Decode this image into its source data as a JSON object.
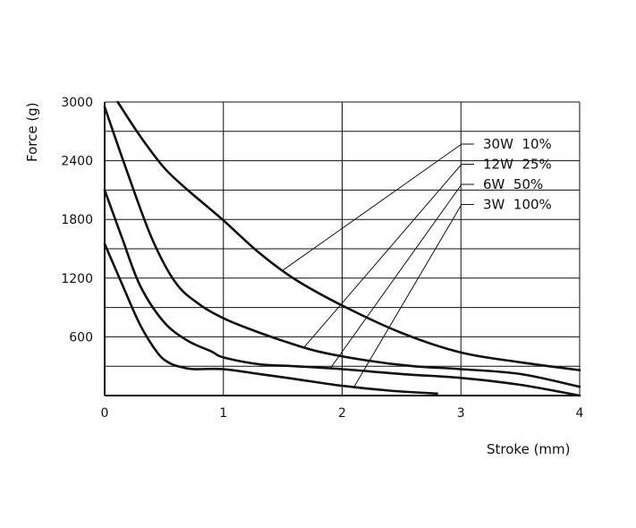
{
  "chart_data": {
    "type": "line",
    "title": "",
    "xlabel": "Stroke (mm)",
    "ylabel": "Force (g)",
    "xlim": [
      0,
      4
    ],
    "ylim": [
      0,
      3000
    ],
    "xticks": [
      0,
      1,
      2,
      3,
      4
    ],
    "yticks": [
      600,
      1200,
      1800,
      2400,
      3000
    ],
    "xgrid": [
      0,
      1,
      2,
      3,
      4
    ],
    "ygrid": [
      300,
      600,
      900,
      1200,
      1500,
      1800,
      2100,
      2400,
      2700,
      3000
    ],
    "grid": true,
    "legend_position": "right, with leader lines to curves",
    "colors": {
      "line": "#111111",
      "grid": "#111111",
      "background": "#ffffff"
    },
    "series": [
      {
        "name": "30W  10%",
        "x": [
          0.11,
          0.3,
          0.5,
          0.7,
          1.0,
          1.3,
          1.6,
          2.0,
          2.5,
          3.0,
          3.5,
          4.0
        ],
        "y": [
          3000,
          2650,
          2330,
          2100,
          1790,
          1460,
          1190,
          920,
          640,
          440,
          340,
          260
        ],
        "label_anchor_x": 1.5
      },
      {
        "name": "12W  25%",
        "x": [
          0.0,
          0.2,
          0.4,
          0.6,
          0.8,
          1.0,
          1.2,
          1.5,
          1.8,
          2.2,
          2.6,
          3.0,
          3.5,
          4.0
        ],
        "y": [
          2950,
          2250,
          1600,
          1150,
          930,
          790,
          690,
          560,
          450,
          360,
          300,
          270,
          220,
          90
        ],
        "label_anchor_x": 1.68
      },
      {
        "name": "6W  50%",
        "x": [
          0.0,
          0.15,
          0.3,
          0.5,
          0.7,
          0.9,
          1.0,
          1.3,
          1.6,
          2.0,
          2.5,
          3.0,
          3.5,
          4.0
        ],
        "y": [
          2100,
          1600,
          1120,
          750,
          560,
          450,
          390,
          320,
          300,
          270,
          220,
          180,
          110,
          0
        ],
        "label_anchor_x": 1.9
      },
      {
        "name": "3W  100%",
        "x": [
          0.0,
          0.15,
          0.3,
          0.45,
          0.55,
          0.65,
          0.75,
          1.0,
          1.3,
          1.6,
          2.0,
          2.4,
          2.8
        ],
        "y": [
          1550,
          1130,
          720,
          430,
          330,
          290,
          270,
          270,
          220,
          170,
          100,
          50,
          20
        ],
        "label_anchor_x": 2.1
      }
    ]
  }
}
